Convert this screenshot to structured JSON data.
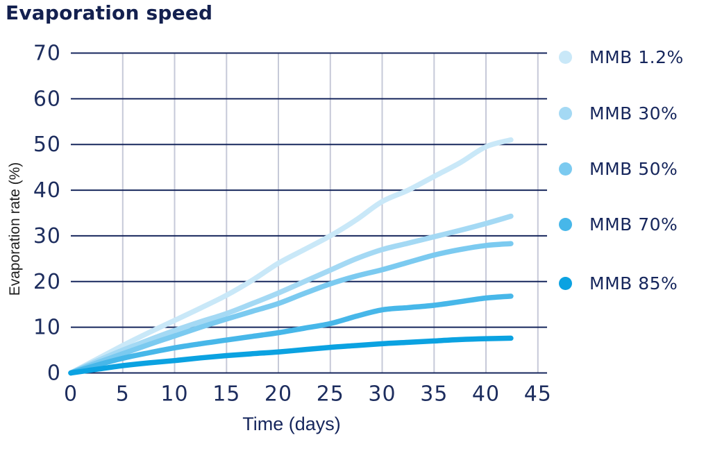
{
  "title": "Evaporation speed",
  "axis": {
    "x_label": "Time (days)",
    "y_label": "Evaporation rate (%)"
  },
  "legend": {
    "items": [
      {
        "label": "MMB 1.2%"
      },
      {
        "label": "MMB 30%"
      },
      {
        "label": "MMB 50%"
      },
      {
        "label": "MMB 70%"
      },
      {
        "label": "MMB 85%"
      }
    ]
  },
  "colors": {
    "title_navy": "#13204f",
    "text_navy": "#16265c",
    "grid_navy": "#16265c",
    "grid_light": "#c6c9d8"
  },
  "chart_data": {
    "type": "line",
    "title": "Evaporation speed",
    "xlabel": "Time (days)",
    "ylabel": "Evaporation rate (%)",
    "xlim": [
      0,
      45
    ],
    "ylim": [
      0,
      70
    ],
    "x_ticks": [
      0,
      5,
      10,
      15,
      20,
      25,
      30,
      35,
      40,
      45
    ],
    "y_ticks": [
      0,
      10,
      20,
      30,
      40,
      50,
      60,
      70
    ],
    "grid": {
      "horizontal": "navy",
      "vertical": "light-gray"
    },
    "legend_position": "right",
    "series": [
      {
        "name": "MMB 1.2%",
        "color": "#c9e8f8",
        "points": [
          [
            0,
            0
          ],
          [
            2.5,
            3.0
          ],
          [
            5,
            6.0
          ],
          [
            7.5,
            8.8
          ],
          [
            10,
            11.5
          ],
          [
            12.5,
            14.2
          ],
          [
            15,
            17.0
          ],
          [
            17.5,
            20.3
          ],
          [
            20,
            24.0
          ],
          [
            22.5,
            27.0
          ],
          [
            25,
            30.0
          ],
          [
            27.5,
            33.5
          ],
          [
            30,
            37.5
          ],
          [
            32.5,
            40.0
          ],
          [
            35,
            43.0
          ],
          [
            37.5,
            46.0
          ],
          [
            40,
            49.5
          ],
          [
            42.4,
            51.0
          ]
        ]
      },
      {
        "name": "MMB 30%",
        "color": "#a4d9f4",
        "points": [
          [
            0,
            0
          ],
          [
            2.5,
            2.6
          ],
          [
            5,
            5.0
          ],
          [
            7.5,
            7.2
          ],
          [
            10,
            9.3
          ],
          [
            12.5,
            11.2
          ],
          [
            15,
            13.0
          ],
          [
            17.5,
            15.2
          ],
          [
            20,
            17.5
          ],
          [
            22.5,
            20.0
          ],
          [
            25,
            22.5
          ],
          [
            27.5,
            25.0
          ],
          [
            30,
            27.0
          ],
          [
            32.5,
            28.4
          ],
          [
            35,
            29.8
          ],
          [
            37.5,
            31.2
          ],
          [
            40,
            32.7
          ],
          [
            42.4,
            34.3
          ]
        ]
      },
      {
        "name": "MMB 50%",
        "color": "#7bcaf0",
        "points": [
          [
            0,
            0
          ],
          [
            2.5,
            2.2
          ],
          [
            5,
            4.2
          ],
          [
            7.5,
            6.2
          ],
          [
            10,
            8.1
          ],
          [
            12.5,
            10.0
          ],
          [
            15,
            11.8
          ],
          [
            17.5,
            13.5
          ],
          [
            20,
            15.2
          ],
          [
            22.5,
            17.4
          ],
          [
            25,
            19.5
          ],
          [
            27.5,
            21.2
          ],
          [
            30,
            22.6
          ],
          [
            32.5,
            24.2
          ],
          [
            35,
            25.8
          ],
          [
            37.5,
            27.0
          ],
          [
            40,
            27.9
          ],
          [
            42.4,
            28.3
          ]
        ]
      },
      {
        "name": "MMB 70%",
        "color": "#47b7e9",
        "points": [
          [
            0,
            0
          ],
          [
            2.5,
            1.7
          ],
          [
            5,
            3.2
          ],
          [
            7.5,
            4.4
          ],
          [
            10,
            5.5
          ],
          [
            12.5,
            6.4
          ],
          [
            15,
            7.2
          ],
          [
            17.5,
            8.0
          ],
          [
            20,
            8.8
          ],
          [
            22.5,
            9.8
          ],
          [
            25,
            10.8
          ],
          [
            27.5,
            12.4
          ],
          [
            30,
            13.8
          ],
          [
            32.5,
            14.3
          ],
          [
            35,
            14.8
          ],
          [
            37.5,
            15.6
          ],
          [
            40,
            16.4
          ],
          [
            42.4,
            16.8
          ]
        ]
      },
      {
        "name": "MMB 85%",
        "color": "#0ba2e1",
        "points": [
          [
            0,
            0
          ],
          [
            2.5,
            0.8
          ],
          [
            5,
            1.6
          ],
          [
            7.5,
            2.2
          ],
          [
            10,
            2.7
          ],
          [
            12.5,
            3.3
          ],
          [
            15,
            3.8
          ],
          [
            17.5,
            4.2
          ],
          [
            20,
            4.6
          ],
          [
            22.5,
            5.1
          ],
          [
            25,
            5.6
          ],
          [
            27.5,
            6.0
          ],
          [
            30,
            6.4
          ],
          [
            32.5,
            6.7
          ],
          [
            35,
            7.0
          ],
          [
            37.5,
            7.3
          ],
          [
            40,
            7.5
          ],
          [
            42.4,
            7.6
          ]
        ]
      }
    ]
  }
}
